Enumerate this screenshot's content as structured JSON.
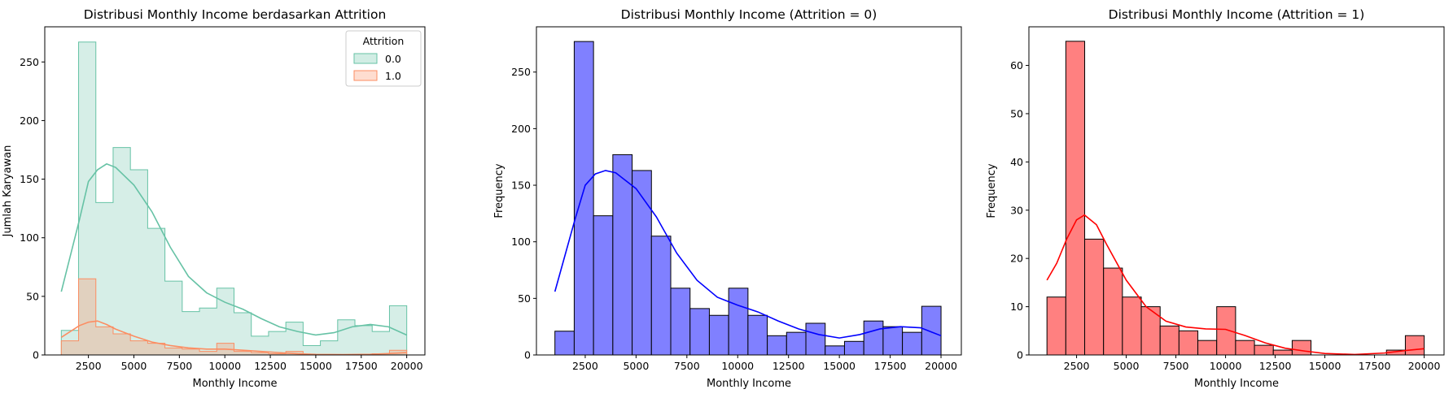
{
  "chart_data": [
    {
      "type": "histogram",
      "title": "Distribusi Monthly Income berdasarkan Attrition",
      "xlabel": "Monthly Income",
      "ylabel": "Jumlah Karyawan",
      "xlim": [
        100,
        21000
      ],
      "ylim": [
        0,
        280
      ],
      "xticks": [
        2500,
        5000,
        7500,
        10000,
        12500,
        15000,
        17500,
        20000
      ],
      "yticks": [
        0,
        50,
        100,
        150,
        200,
        250
      ],
      "bin_edges": [
        1009,
        1958.6,
        2908.2,
        3857.8,
        4807.4,
        5757,
        6706.6,
        7656.2,
        8605.8,
        9555.4,
        10505,
        11454.6,
        12404.2,
        13353.8,
        14303.4,
        15253,
        16202.6,
        17152.2,
        18101.8,
        19051.4,
        20001
      ],
      "legend": {
        "title": "Attrition",
        "position": "top-right"
      },
      "series": [
        {
          "name": "0.0",
          "color": "#66c2a5",
          "values": [
            21,
            267,
            130,
            177,
            158,
            108,
            63,
            37,
            40,
            57,
            36,
            16,
            20,
            28,
            8,
            12,
            30,
            25,
            20,
            42
          ],
          "kde": [
            [
              1009,
              54
            ],
            [
              2000,
              115
            ],
            [
              2500,
              148
            ],
            [
              3000,
              158
            ],
            [
              3500,
              163
            ],
            [
              4000,
              160
            ],
            [
              5000,
              145
            ],
            [
              6000,
              122
            ],
            [
              7000,
              92
            ],
            [
              8000,
              67
            ],
            [
              9000,
              53
            ],
            [
              10000,
              45
            ],
            [
              11000,
              39
            ],
            [
              12000,
              31
            ],
            [
              13000,
              24
            ],
            [
              14000,
              20
            ],
            [
              15000,
              17
            ],
            [
              16000,
              19
            ],
            [
              17000,
              24
            ],
            [
              18000,
              26
            ],
            [
              19000,
              24
            ],
            [
              20000,
              17
            ]
          ]
        },
        {
          "name": "1.0",
          "color": "#fc8d62",
          "values": [
            12,
            65,
            24,
            18,
            12,
            10,
            6,
            5,
            3,
            10,
            3,
            2,
            1,
            3,
            0,
            0,
            0,
            0,
            1,
            4
          ],
          "kde": [
            [
              1009,
              15
            ],
            [
              2000,
              25
            ],
            [
              2500,
              28
            ],
            [
              3000,
              29
            ],
            [
              3500,
              26
            ],
            [
              4000,
              22
            ],
            [
              5000,
              16
            ],
            [
              6000,
              11
            ],
            [
              7000,
              8
            ],
            [
              8000,
              6
            ],
            [
              9000,
              5
            ],
            [
              10000,
              5
            ],
            [
              11000,
              4
            ],
            [
              12000,
              3
            ],
            [
              13000,
              2
            ],
            [
              14000,
              1
            ],
            [
              15000,
              0.5
            ],
            [
              16500,
              0.3
            ],
            [
              18000,
              0.6
            ],
            [
              19000,
              1.2
            ],
            [
              20000,
              2
            ]
          ]
        }
      ]
    },
    {
      "type": "histogram",
      "title": "Distribusi Monthly Income (Attrition = 0)",
      "xlabel": "Monthly Income",
      "ylabel": "Frequency",
      "xlim": [
        100,
        21000
      ],
      "ylim": [
        0,
        290
      ],
      "xticks": [
        2500,
        5000,
        7500,
        10000,
        12500,
        15000,
        17500,
        20000
      ],
      "yticks": [
        0,
        50,
        100,
        150,
        200,
        250
      ],
      "bin_edges": [
        1009,
        1958.6,
        2908.2,
        3857.8,
        4807.4,
        5757,
        6706.6,
        7656.2,
        8605.8,
        9555.4,
        10505,
        11454.6,
        12404.2,
        13353.8,
        14303.4,
        15253,
        16202.6,
        17152.2,
        18101.8,
        19051.4,
        20001
      ],
      "series": [
        {
          "color": "#0000ff",
          "values": [
            21,
            277,
            123,
            177,
            163,
            105,
            59,
            41,
            35,
            59,
            35,
            17,
            20,
            28,
            8,
            12,
            30,
            25,
            20,
            43
          ],
          "kde": [
            [
              1009,
              56
            ],
            [
              2000,
              120
            ],
            [
              2500,
              150
            ],
            [
              3000,
              160
            ],
            [
              3500,
              163
            ],
            [
              4000,
              161
            ],
            [
              5000,
              147
            ],
            [
              6000,
              122
            ],
            [
              7000,
              90
            ],
            [
              8000,
              66
            ],
            [
              9000,
              51
            ],
            [
              10000,
              44
            ],
            [
              11000,
              38
            ],
            [
              12000,
              30
            ],
            [
              13000,
              23
            ],
            [
              14000,
              18
            ],
            [
              15000,
              15
            ],
            [
              16000,
              18
            ],
            [
              17000,
              23
            ],
            [
              18000,
              25
            ],
            [
              19000,
              24
            ],
            [
              20000,
              17
            ]
          ]
        }
      ]
    },
    {
      "type": "histogram",
      "title": "Distribusi Monthly Income (Attrition = 1)",
      "xlabel": "Monthly Income",
      "ylabel": "Frequency",
      "xlim": [
        100,
        21000
      ],
      "ylim": [
        0,
        68
      ],
      "xticks": [
        2500,
        5000,
        7500,
        10000,
        12500,
        15000,
        17500,
        20000
      ],
      "yticks": [
        0,
        10,
        20,
        30,
        40,
        50,
        60
      ],
      "bin_edges": [
        1009,
        1958.6,
        2908.2,
        3857.8,
        4807.4,
        5757,
        6706.6,
        7656.2,
        8605.8,
        9555.4,
        10505,
        11454.6,
        12404.2,
        13353.8,
        14303.4,
        15253,
        16202.6,
        17152.2,
        18101.8,
        19051.4,
        20001
      ],
      "series": [
        {
          "color": "#ff0000",
          "values": [
            12,
            65,
            24,
            18,
            12,
            10,
            6,
            5,
            3,
            10,
            3,
            2,
            1,
            3,
            0,
            0,
            0,
            0,
            1,
            4
          ],
          "kde": [
            [
              1009,
              15.5
            ],
            [
              1500,
              19
            ],
            [
              2000,
              24
            ],
            [
              2500,
              28
            ],
            [
              2900,
              29
            ],
            [
              3500,
              27
            ],
            [
              4000,
              23
            ],
            [
              5000,
              15.5
            ],
            [
              6000,
              10
            ],
            [
              7000,
              7
            ],
            [
              8000,
              5.8
            ],
            [
              9000,
              5.4
            ],
            [
              10000,
              5.3
            ],
            [
              11000,
              4
            ],
            [
              12000,
              2.5
            ],
            [
              13000,
              1.4
            ],
            [
              14000,
              0.8
            ],
            [
              15000,
              0.3
            ],
            [
              16500,
              0.1
            ],
            [
              18000,
              0.4
            ],
            [
              19000,
              0.9
            ],
            [
              20000,
              1.3
            ]
          ]
        }
      ]
    }
  ]
}
